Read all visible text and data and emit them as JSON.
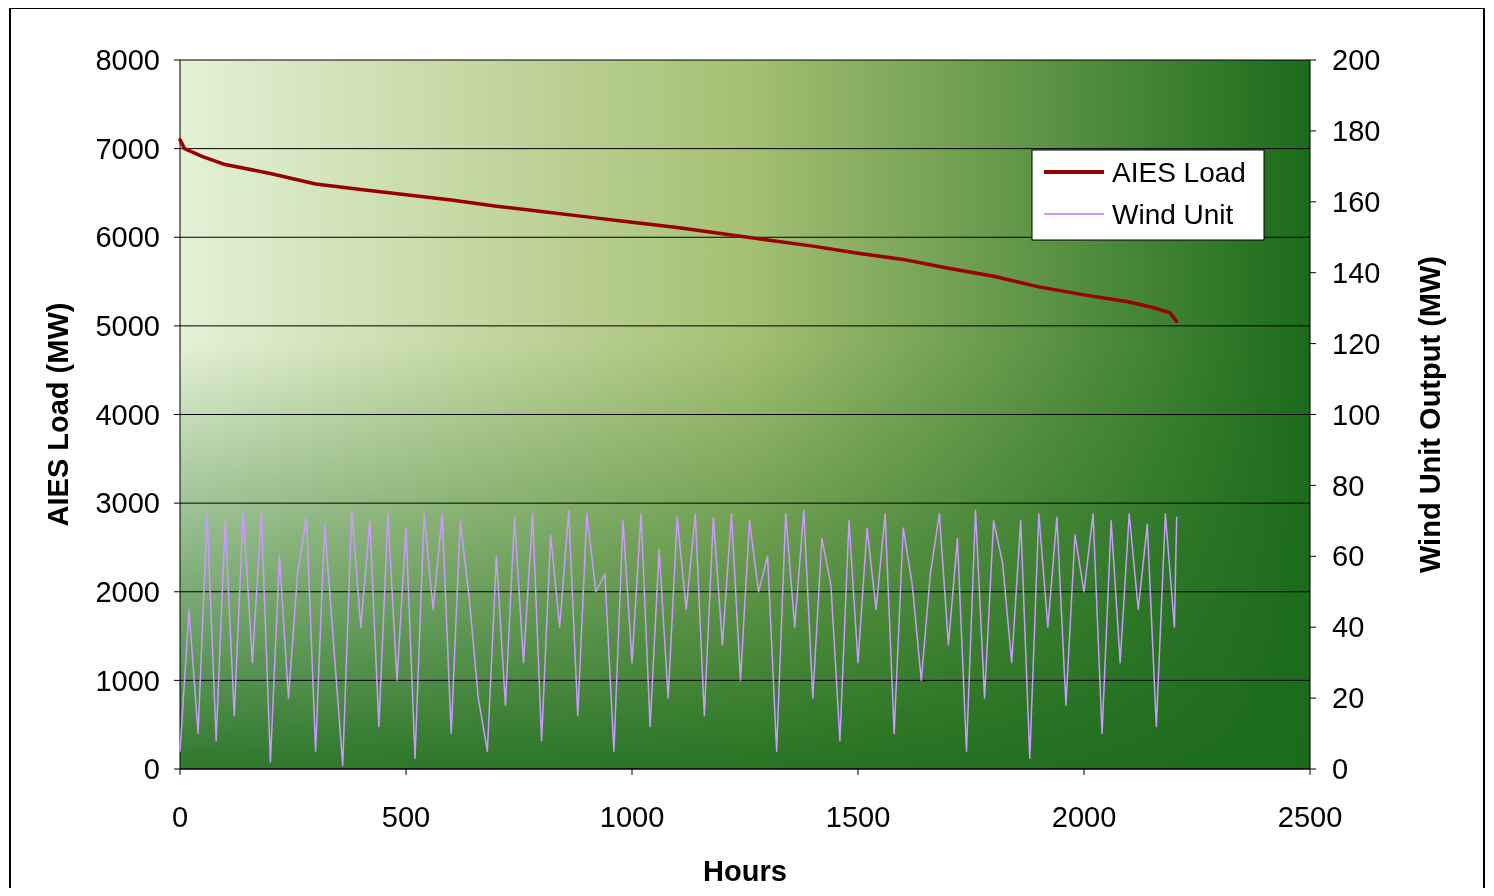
{
  "chart_data": {
    "type": "line",
    "xlabel": "Hours",
    "ylabel": "AIES Load (MW)",
    "y2label": "Wind Unit Output (MW)",
    "xlim": [
      0,
      2500
    ],
    "xticks": [
      0,
      500,
      1000,
      1500,
      2000,
      2500
    ],
    "ylim": [
      0,
      8000
    ],
    "yticks": [
      0,
      1000,
      2000,
      3000,
      4000,
      5000,
      6000,
      7000,
      8000
    ],
    "y2lim": [
      0,
      200
    ],
    "y2ticks": [
      0,
      20,
      40,
      60,
      80,
      100,
      120,
      140,
      160,
      180,
      200
    ],
    "grid": "y",
    "legend": "top right",
    "series": [
      {
        "name": "AIES Load",
        "color": "#990000",
        "x": [
          0,
          10,
          50,
          100,
          200,
          300,
          400,
          500,
          600,
          700,
          800,
          900,
          1000,
          1100,
          1200,
          1300,
          1400,
          1500,
          1600,
          1700,
          1800,
          1900,
          2000,
          2100,
          2150,
          2190,
          2205
        ],
        "values": [
          7100,
          7000,
          6910,
          6820,
          6720,
          6600,
          6540,
          6480,
          6420,
          6350,
          6290,
          6230,
          6170,
          6110,
          6040,
          5970,
          5900,
          5820,
          5750,
          5650,
          5560,
          5440,
          5350,
          5270,
          5210,
          5150,
          5050
        ]
      },
      {
        "name": "Wind Unit",
        "color": "#cc99ff",
        "axis": "y2",
        "x": [
          0,
          20,
          40,
          60,
          80,
          100,
          120,
          140,
          160,
          180,
          200,
          220,
          240,
          260,
          280,
          300,
          320,
          340,
          360,
          380,
          400,
          420,
          440,
          460,
          480,
          500,
          520,
          540,
          560,
          580,
          600,
          620,
          640,
          660,
          680,
          700,
          720,
          740,
          760,
          780,
          800,
          820,
          840,
          860,
          880,
          900,
          920,
          940,
          960,
          980,
          1000,
          1020,
          1040,
          1060,
          1080,
          1100,
          1120,
          1140,
          1160,
          1180,
          1200,
          1220,
          1240,
          1260,
          1280,
          1300,
          1320,
          1340,
          1360,
          1380,
          1400,
          1420,
          1440,
          1460,
          1480,
          1500,
          1520,
          1540,
          1560,
          1580,
          1600,
          1620,
          1640,
          1660,
          1680,
          1700,
          1720,
          1740,
          1760,
          1780,
          1800,
          1820,
          1840,
          1860,
          1880,
          1900,
          1920,
          1940,
          1960,
          1980,
          2000,
          2020,
          2040,
          2060,
          2080,
          2100,
          2120,
          2140,
          2160,
          2180,
          2200,
          2205
        ],
        "values": [
          5,
          45,
          10,
          72,
          8,
          70,
          15,
          73,
          30,
          72,
          2,
          60,
          20,
          55,
          71,
          5,
          69,
          35,
          1,
          73,
          40,
          70,
          12,
          72,
          25,
          68,
          3,
          72,
          45,
          72,
          10,
          70,
          48,
          20,
          5,
          60,
          18,
          71,
          30,
          72,
          8,
          66,
          40,
          73,
          15,
          72,
          50,
          55,
          5,
          70,
          30,
          72,
          12,
          62,
          20,
          71,
          45,
          72,
          15,
          71,
          35,
          72,
          25,
          70,
          50,
          60,
          5,
          72,
          40,
          73,
          20,
          65,
          52,
          8,
          70,
          30,
          68,
          45,
          72,
          10,
          68,
          52,
          25,
          55,
          72,
          35,
          65,
          5,
          73,
          20,
          70,
          58,
          30,
          70,
          3,
          72,
          40,
          71,
          18,
          66,
          50,
          72,
          10,
          70,
          30,
          72,
          45,
          69,
          12,
          72,
          40,
          71
        ]
      }
    ]
  }
}
